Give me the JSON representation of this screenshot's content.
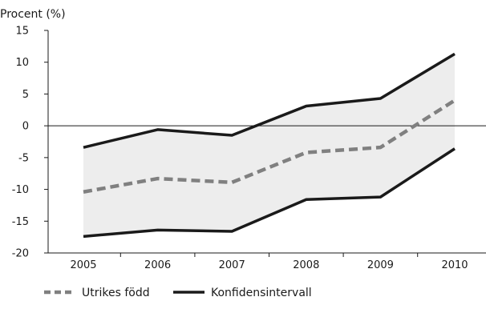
{
  "chart_data": {
    "type": "line",
    "title": "",
    "ylabel": "Procent (%)",
    "xlabel": "",
    "x": [
      "2005",
      "2006",
      "2007",
      "2008",
      "2009",
      "2010"
    ],
    "ylim": [
      -20,
      15
    ],
    "yticks": [
      15,
      10,
      5,
      0,
      -5,
      -10,
      -15,
      -20
    ],
    "yticklabels": [
      "15",
      "10",
      "5",
      "0",
      "-5",
      "-10",
      "-15",
      "-20"
    ],
    "grid": false,
    "legend_position": "bottom-left",
    "series": [
      {
        "name": "Utrikes född",
        "style": "dashed",
        "color": "#808080",
        "values": [
          -10.4,
          -8.3,
          -8.9,
          -4.2,
          -3.4,
          4.0
        ]
      },
      {
        "name": "Konfidensintervall",
        "style": "solid",
        "color": "#1a1a1a",
        "role": "upper",
        "values": [
          -3.4,
          -0.6,
          -1.5,
          3.1,
          4.3,
          11.3
        ]
      },
      {
        "name": "Konfidensintervall",
        "style": "solid",
        "color": "#1a1a1a",
        "role": "lower",
        "values": [
          -17.4,
          -16.4,
          -16.6,
          -11.6,
          -11.2,
          -3.6
        ]
      }
    ],
    "band_color": "#ededed",
    "legend": [
      {
        "label": "Utrikes född",
        "style": "dashed",
        "color": "#808080"
      },
      {
        "label": "Konfidensintervall",
        "style": "solid",
        "color": "#1a1a1a"
      }
    ]
  }
}
